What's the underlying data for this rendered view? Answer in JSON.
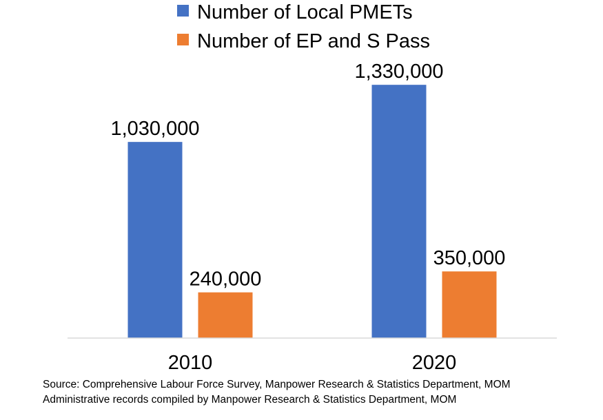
{
  "chart_data": {
    "type": "bar",
    "categories": [
      "2010",
      "2020"
    ],
    "series": [
      {
        "name": "Number of Local PMETs",
        "color": "#4472C4",
        "values": [
          1030000,
          1330000
        ],
        "labels": [
          "1,030,000",
          "1,330,000"
        ]
      },
      {
        "name": "Number of EP and S Pass",
        "color": "#ED7D31",
        "values": [
          240000,
          350000
        ],
        "labels": [
          "240,000",
          "350,000"
        ]
      }
    ],
    "title": "",
    "xlabel": "",
    "ylabel": "",
    "ylim": [
      0,
      1450000
    ],
    "grid": false,
    "legend": "top-center"
  },
  "source_lines": [
    "Source: Comprehensive Labour Force Survey, Manpower Research & Statistics Department, MOM",
    "Administrative records compiled by Manpower Research & Statistics Department, MOM"
  ]
}
